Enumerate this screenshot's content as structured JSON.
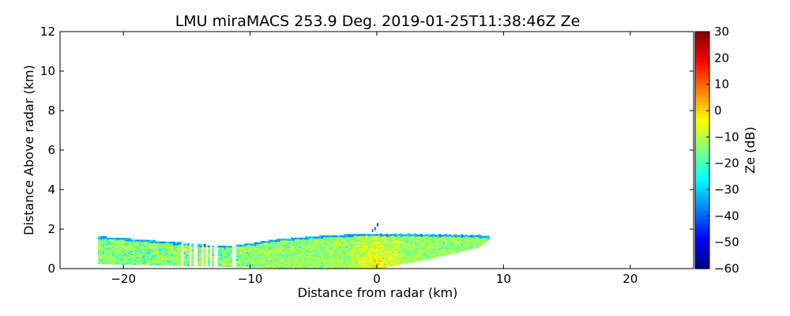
{
  "chart_data": {
    "type": "heatmap",
    "title": "LMU miraMACS 253.9 Deg. 2019-01-25T11:38:46Z  Ze",
    "xlabel": "Distance from radar (km)",
    "ylabel": "Distance Above radar  (km)",
    "xlim": [
      -25,
      25
    ],
    "ylim": [
      0,
      12
    ],
    "x_ticks": [
      -20,
      -10,
      0,
      10,
      20
    ],
    "x_tick_labels": [
      "−20",
      "−10",
      "0",
      "10",
      "20"
    ],
    "y_ticks": [
      0,
      2,
      4,
      6,
      8,
      10,
      12
    ],
    "y_tick_labels": [
      "0",
      "2",
      "4",
      "6",
      "8",
      "10",
      "12"
    ],
    "grid": false,
    "colorbar": {
      "label": "Ze (dB)",
      "range": [
        -60,
        30
      ],
      "ticks": [
        30,
        20,
        10,
        0,
        -10,
        -20,
        -30,
        -40,
        -50,
        -60
      ],
      "tick_labels": [
        "30",
        "20",
        "10",
        "0",
        "−10",
        "−20",
        "−30",
        "−40",
        "−50",
        "−60"
      ],
      "colormap": "jet"
    },
    "echo_top_km": [
      [
        -22,
        1.6
      ],
      [
        -20,
        1.5
      ],
      [
        -18,
        1.4
      ],
      [
        -16,
        1.3
      ],
      [
        -14,
        1.2
      ],
      [
        -12,
        1.1
      ],
      [
        -10,
        1.25
      ],
      [
        -8,
        1.45
      ],
      [
        -6,
        1.55
      ],
      [
        -4,
        1.65
      ],
      [
        -2,
        1.7
      ],
      [
        0,
        1.72
      ],
      [
        2,
        1.72
      ],
      [
        4,
        1.7
      ],
      [
        6,
        1.68
      ],
      [
        8,
        1.65
      ],
      [
        8.8,
        1.6
      ]
    ],
    "echo_base_km": [
      [
        -22,
        0.25
      ],
      [
        -15,
        0.15
      ],
      [
        -8,
        0.05
      ],
      [
        -4,
        0.0
      ],
      [
        0,
        0.0
      ],
      [
        4,
        0.5
      ],
      [
        8,
        1.1
      ],
      [
        8.8,
        1.5
      ]
    ],
    "typical_ze_dB": {
      "core_near_radar": 0,
      "interior": -15,
      "cloud_top": -40
    }
  }
}
